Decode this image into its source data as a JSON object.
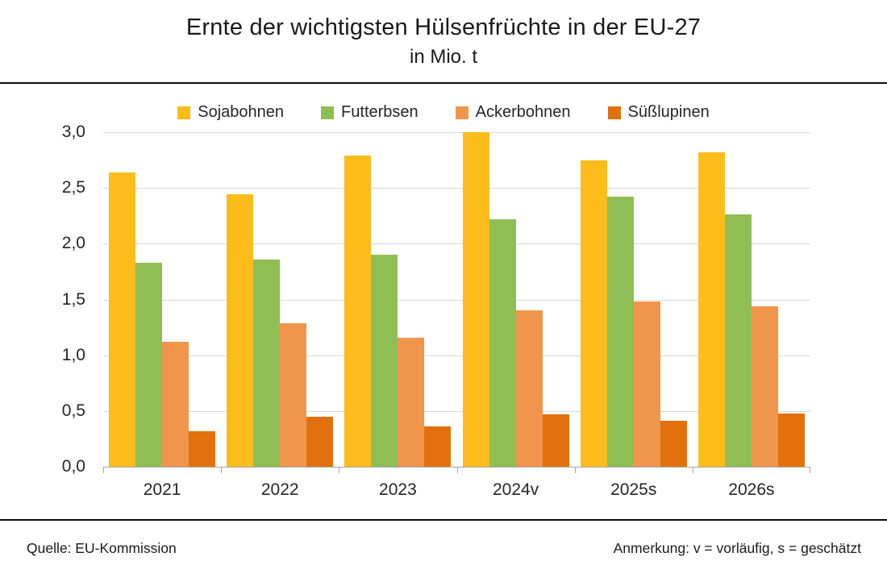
{
  "header": {
    "title": "Ernte der wichtigsten Hülsenfrüchte in der EU-27",
    "subtitle": "in Mio. t"
  },
  "legend": [
    {
      "label": "Sojabohnen",
      "color": "#FBBC1C"
    },
    {
      "label": "Futterbsen",
      "color": "#8FBE55"
    },
    {
      "label": "Ackerbohnen",
      "color": "#F0964C"
    },
    {
      "label": "Süßlupinen",
      "color": "#E2710D"
    }
  ],
  "chart_data": {
    "type": "bar",
    "title": "Ernte der wichtigsten Hülsenfrüchte in der EU-27",
    "subtitle": "in Mio. t",
    "unit": "Mio. t",
    "categories": [
      "2021",
      "2022",
      "2023",
      "2024v",
      "2025s",
      "2026s"
    ],
    "series": [
      {
        "name": "Sojabohnen",
        "color": "#FBBC1C",
        "values": [
          2.64,
          2.44,
          2.79,
          3.0,
          2.75,
          2.82
        ]
      },
      {
        "name": "Futterbsen",
        "color": "#8FBE55",
        "values": [
          1.83,
          1.86,
          1.9,
          2.22,
          2.42,
          2.26
        ]
      },
      {
        "name": "Ackerbohnen",
        "color": "#F0964C",
        "values": [
          1.12,
          1.29,
          1.16,
          1.4,
          1.48,
          1.44
        ]
      },
      {
        "name": "Süßlupinen",
        "color": "#E2710D",
        "values": [
          0.32,
          0.45,
          0.36,
          0.47,
          0.41,
          0.48
        ]
      }
    ],
    "ylim": [
      0,
      3
    ],
    "ytick_step": 0.5,
    "ytick_labels": [
      "0,0",
      "0,5",
      "1,0",
      "1,5",
      "2,0",
      "2,5",
      "3,0"
    ],
    "grid": true,
    "legend_position": "top",
    "gridline_color": "#D9D9D9",
    "axis_color": "#A6A6A6"
  },
  "footer": {
    "source": "Quelle: EU-Kommission",
    "note": "Anmerkung: v = vorläufig, s = geschätzt"
  }
}
